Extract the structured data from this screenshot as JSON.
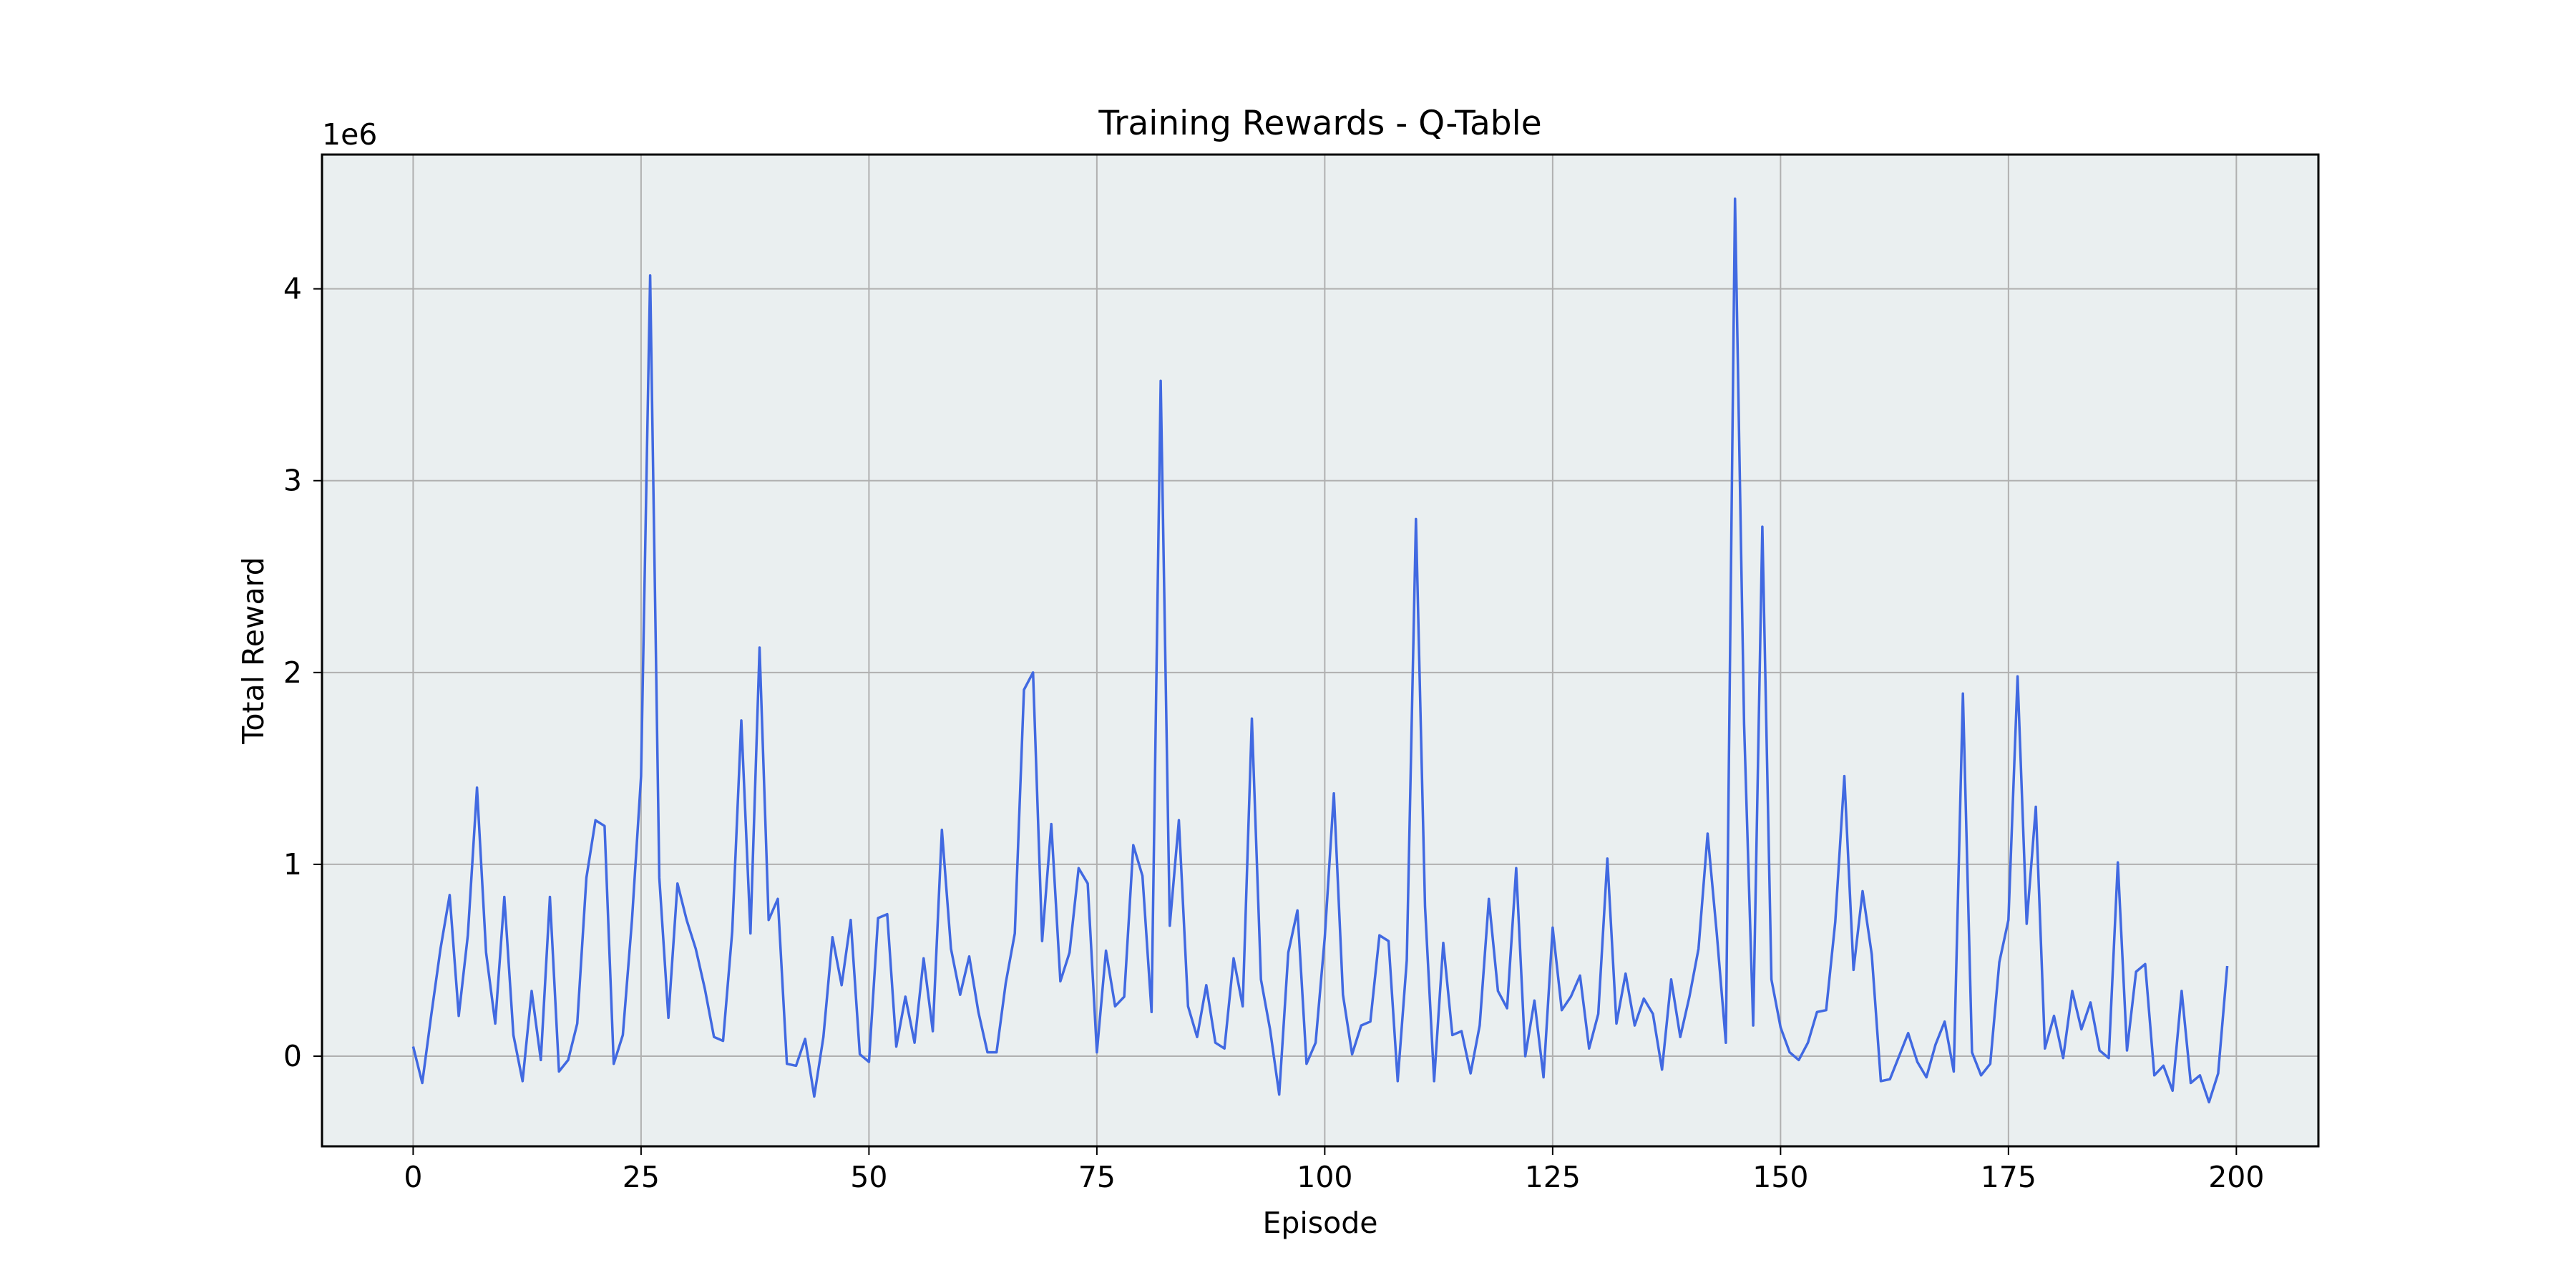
{
  "chart_data": {
    "type": "line",
    "title": "Training Rewards - Q-Table",
    "xlabel": "Episode",
    "ylabel": "Total Reward",
    "y_offset_label": "1e6",
    "xlim": [
      -10,
      209
    ],
    "ylim": [
      -470000,
      4700000
    ],
    "x_ticks": [
      0,
      25,
      50,
      75,
      100,
      125,
      150,
      175,
      200
    ],
    "y_ticks": [
      0,
      1,
      2,
      3,
      4
    ],
    "y_multiplier": 1000000,
    "grid": true,
    "legend": "none",
    "colors": {
      "line": "#4169e1",
      "plot_bg": "#eaeff0",
      "grid": "#b0b0b0",
      "page_bg": "#ffffff"
    },
    "series": [
      {
        "x": [
          0,
          1,
          2,
          3,
          4,
          5,
          6,
          7,
          8,
          9,
          10,
          11,
          12,
          13,
          14,
          15,
          16,
          17,
          18,
          19,
          20,
          21,
          22,
          23,
          24,
          25,
          26,
          27,
          28,
          29,
          30,
          31,
          32,
          33,
          34,
          35,
          36,
          37,
          38,
          39,
          40,
          41,
          42,
          43,
          44,
          45,
          46,
          47,
          48,
          49,
          50,
          51,
          52,
          53,
          54,
          55,
          56,
          57,
          58,
          59,
          60,
          61,
          62,
          63,
          64,
          65,
          66,
          67,
          68,
          69,
          70,
          71,
          72,
          73,
          74,
          75,
          76,
          77,
          78,
          79,
          80,
          81,
          82,
          83,
          84,
          85,
          86,
          87,
          88,
          89,
          90,
          91,
          92,
          93,
          94,
          95,
          96,
          97,
          98,
          99,
          100,
          101,
          102,
          103,
          104,
          105,
          106,
          107,
          108,
          109,
          110,
          111,
          112,
          113,
          114,
          115,
          116,
          117,
          118,
          119,
          120,
          121,
          122,
          123,
          124,
          125,
          126,
          127,
          128,
          129,
          130,
          131,
          132,
          133,
          134,
          135,
          136,
          137,
          138,
          139,
          140,
          141,
          142,
          143,
          144,
          145,
          146,
          147,
          148,
          149,
          150,
          151,
          152,
          153,
          154,
          155,
          156,
          157,
          158,
          159,
          160,
          161,
          162,
          163,
          164,
          165,
          166,
          167,
          168,
          169,
          170,
          171,
          172,
          173,
          174,
          175,
          176,
          177,
          178,
          179,
          180,
          181,
          182,
          183,
          184,
          185,
          186,
          187,
          188,
          189,
          190,
          191,
          192,
          193,
          194,
          195,
          196,
          197,
          198,
          199
        ],
        "values": [
          50000,
          -140000,
          220000,
          560000,
          840000,
          210000,
          630000,
          1400000,
          540000,
          170000,
          830000,
          110000,
          -130000,
          340000,
          -20000,
          830000,
          -80000,
          -20000,
          170000,
          930000,
          1230000,
          1200000,
          -40000,
          110000,
          710000,
          1460000,
          4070000,
          930000,
          200000,
          900000,
          710000,
          560000,
          350000,
          100000,
          80000,
          650000,
          1750000,
          640000,
          2130000,
          710000,
          820000,
          -40000,
          -50000,
          90000,
          -210000,
          100000,
          620000,
          370000,
          710000,
          10000,
          -30000,
          720000,
          740000,
          50000,
          310000,
          70000,
          510000,
          130000,
          1180000,
          560000,
          320000,
          520000,
          230000,
          20000,
          20000,
          380000,
          640000,
          1910000,
          2000000,
          600000,
          1210000,
          390000,
          540000,
          980000,
          900000,
          20000,
          550000,
          260000,
          310000,
          1100000,
          940000,
          230000,
          3520000,
          680000,
          1230000,
          260000,
          100000,
          370000,
          70000,
          40000,
          510000,
          260000,
          1760000,
          400000,
          140000,
          -200000,
          540000,
          760000,
          -40000,
          70000,
          620000,
          1370000,
          320000,
          10000,
          160000,
          180000,
          630000,
          600000,
          -130000,
          500000,
          2800000,
          780000,
          -130000,
          590000,
          110000,
          130000,
          -90000,
          160000,
          820000,
          340000,
          250000,
          980000,
          0,
          290000,
          -110000,
          670000,
          240000,
          310000,
          420000,
          40000,
          220000,
          1030000,
          170000,
          430000,
          160000,
          300000,
          220000,
          -70000,
          400000,
          100000,
          310000,
          560000,
          1160000,
          640000,
          70000,
          4470000,
          1730000,
          160000,
          2760000,
          400000,
          150000,
          20000,
          -20000,
          70000,
          230000,
          240000,
          700000,
          1460000,
          450000,
          860000,
          530000,
          -130000,
          -120000,
          0,
          120000,
          -30000,
          -110000,
          60000,
          180000,
          -80000,
          1890000,
          20000,
          -100000,
          -40000,
          490000,
          710000,
          1980000,
          690000,
          1300000,
          40000,
          210000,
          -10000,
          340000,
          140000,
          280000,
          30000,
          -10000,
          1010000,
          30000,
          440000,
          480000,
          -100000,
          -50000,
          -180000,
          340000,
          -140000,
          -100000,
          -240000,
          -90000,
          470000
        ]
      }
    ]
  }
}
